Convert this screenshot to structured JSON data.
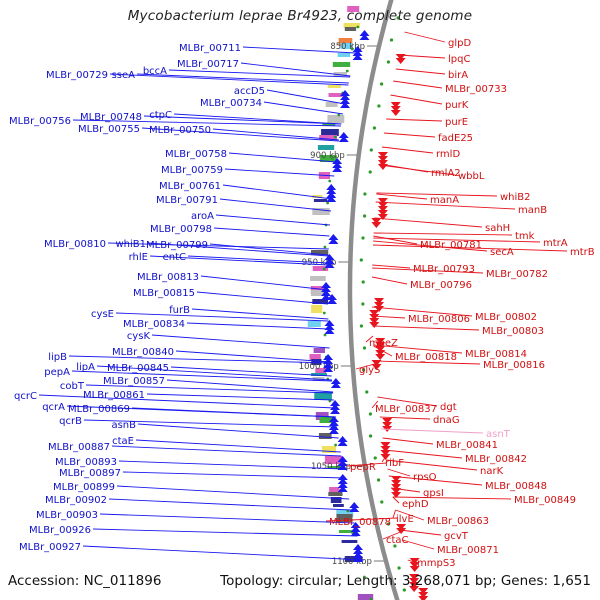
{
  "title": "Mycobacterium leprae Br4923, complete genome",
  "footer": {
    "accession": "Accession: NC_011896",
    "topology": "Topology: circular; Length: 3,268,071 bp; Genes: 1,651"
  },
  "scale_ticks": [
    "850 kbp",
    "900 kbp",
    "950 kbp",
    "1000 kbp",
    "1050 kbp",
    "1100 kbp"
  ],
  "left_genes": [
    "MLBr_00711",
    "MLBr_00717",
    "MLBr_00729",
    "sseA",
    "bccA",
    "accD5",
    "MLBr_00734",
    "ctpC",
    "MLBr_00748",
    "MLBr_00756",
    "MLBr_00755",
    "MLBr_00750",
    "MLBr_00758",
    "MLBr_00759",
    "MLBr_00761",
    "MLBr_00791",
    "aroA",
    "MLBr_00798",
    "MLBr_00810",
    "whiB1",
    "MLBr_00799",
    "rhlE",
    "entC",
    "MLBr_00813",
    "MLBr_00815",
    "furB",
    "cysE",
    "MLBr_00834",
    "cysK",
    "MLBr_00840",
    "MLBr_00845",
    "lipB",
    "lipA",
    "MLBr_00857",
    "pepA",
    "cobT",
    "MLBr_00861",
    "qcrC",
    "qcrA",
    "MLBr_00869",
    "qcrB",
    "asnB",
    "ctaE",
    "MLBr_00887",
    "MLBr_00893",
    "MLBr_00897",
    "MLBr_00899",
    "MLBr_00902",
    "MLBr_00903",
    "MLBr_00926",
    "MLBr_00927"
  ],
  "right_genes": [
    "glpD",
    "lpqC",
    "birA",
    "MLBr_00733",
    "purK",
    "purE",
    "fadE25",
    "rmlD",
    "rmlA2",
    "wbbL",
    "whiB2",
    "manA",
    "manB",
    "sahH",
    "tmk",
    "mtrA",
    "mtrB",
    "MLBr_00781",
    "secA",
    "MLBr_00793",
    "MLBr_00782",
    "MLBr_00796",
    "MLBr_00802",
    "MLBr_00806",
    "MLBr_00803",
    "moeZ",
    "MLBr_00814",
    "MLBr_00818",
    "MLBr_00816",
    "glyS",
    "MLBr_00837",
    "dgt",
    "dnaG",
    "asnT",
    "MLBr_00841",
    "MLBr_00842",
    "narK",
    "pepR",
    "ribF",
    "rpsO",
    "MLBr_00848",
    "MLBr_00849",
    "gpsI",
    "ephD",
    "ilvE",
    "MLBr_00863",
    "MLBr_00878",
    "gcvT",
    "ctaC",
    "MLBr_00871",
    "mmpS3"
  ],
  "colors": {
    "forward_strand": "#e8141e",
    "reverse_strand": "#1a1af0",
    "left_label_text": "#1010c8",
    "right_label_text": "#d01010",
    "rna_label_text": "#f0a0c8",
    "backbone": "#8c8c8c",
    "tick_dot": "#2a9a2a"
  }
}
